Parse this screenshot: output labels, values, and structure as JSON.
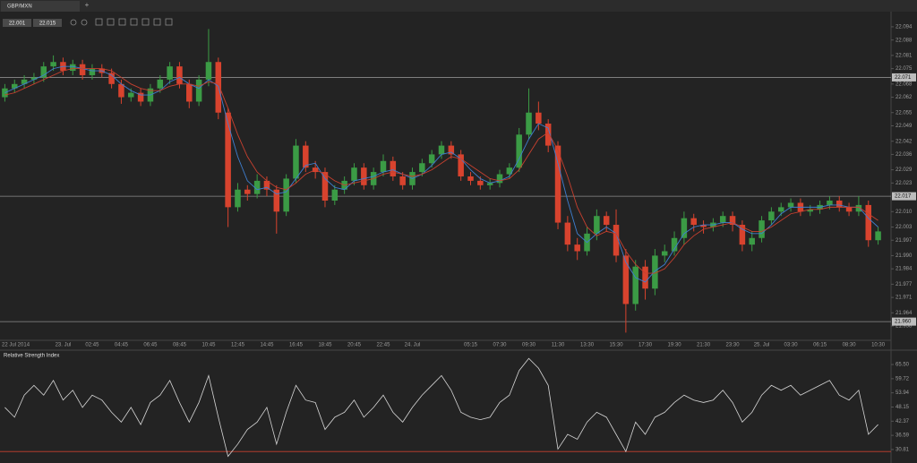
{
  "tab": {
    "title": "GBP/MXN",
    "add": "+"
  },
  "toolbar": {
    "bid": "22.001",
    "ask": "22.015"
  },
  "chart_data": [
    {
      "type": "candlestick",
      "categories": [
        "22 Jul 2014",
        null,
        null,
        null,
        null,
        null,
        "23. Jul",
        null,
        null,
        "02:45",
        null,
        null,
        "04:45",
        null,
        null,
        "06:45",
        null,
        null,
        "08:45",
        null,
        null,
        "10:45",
        null,
        null,
        "12:45",
        null,
        null,
        "14:45",
        null,
        null,
        "16:45",
        null,
        null,
        "18:45",
        null,
        null,
        "20:45",
        null,
        null,
        "22:45",
        null,
        null,
        "24. Jul",
        null,
        null,
        null,
        null,
        null,
        "05:15",
        null,
        null,
        "07:30",
        null,
        null,
        "09:30",
        null,
        null,
        "11:30",
        null,
        null,
        "13:30",
        null,
        null,
        "15:30",
        null,
        null,
        "17:30",
        null,
        null,
        "19:30",
        null,
        null,
        "21:30",
        null,
        null,
        "23:30",
        null,
        null,
        "25. Jul",
        null,
        null,
        "03:30",
        null,
        null,
        "06:15",
        null,
        null,
        "08:30",
        null,
        null,
        "10:30"
      ],
      "open": [
        22.062,
        22.066,
        22.068,
        22.07,
        22.071,
        22.076,
        22.078,
        22.074,
        22.077,
        22.072,
        22.075,
        22.073,
        22.068,
        22.062,
        22.064,
        22.06,
        22.066,
        22.07,
        22.076,
        22.068,
        22.06,
        22.07,
        22.078,
        22.055,
        22.012,
        22.02,
        22.018,
        22.024,
        22.02,
        22.01,
        22.025,
        22.04,
        22.03,
        22.028,
        22.015,
        22.02,
        22.024,
        22.03,
        22.022,
        22.028,
        22.033,
        22.026,
        22.022,
        22.028,
        22.032,
        22.036,
        22.04,
        22.036,
        22.026,
        22.024,
        22.022,
        22.023,
        22.027,
        22.03,
        22.045,
        22.055,
        22.05,
        22.04,
        22.005,
        21.995,
        21.992,
        22.0,
        22.008,
        22.004,
        21.99,
        21.968,
        21.985,
        21.975,
        21.99,
        21.992,
        21.998,
        22.007,
        22.004,
        22.003,
        22.005,
        22.008,
        22.004,
        21.995,
        21.998,
        22.006,
        22.01,
        22.012,
        22.014,
        22.01,
        22.011,
        22.013,
        22.015,
        22.012,
        22.01,
        22.013,
        21.997
      ],
      "high": [
        22.068,
        22.07,
        22.072,
        22.073,
        22.078,
        22.081,
        22.08,
        22.079,
        22.079,
        22.077,
        22.077,
        22.075,
        22.07,
        22.066,
        22.066,
        22.068,
        22.072,
        22.078,
        22.078,
        22.07,
        22.072,
        22.093,
        22.08,
        22.057,
        22.023,
        22.022,
        22.027,
        22.026,
        22.022,
        22.027,
        22.043,
        22.042,
        22.033,
        22.03,
        22.022,
        22.026,
        22.032,
        22.032,
        22.03,
        22.036,
        22.035,
        22.028,
        22.03,
        22.034,
        22.038,
        22.042,
        22.042,
        22.038,
        22.028,
        22.026,
        22.025,
        22.029,
        22.032,
        22.048,
        22.066,
        22.06,
        22.052,
        22.042,
        22.008,
        21.998,
        22.003,
        22.011,
        22.01,
        22.011,
        21.993,
        21.988,
        21.988,
        21.993,
        21.995,
        22.001,
        22.01,
        22.009,
        22.006,
        22.007,
        22.01,
        22.01,
        22.006,
        22.001,
        22.008,
        22.012,
        22.014,
        22.016,
        22.016,
        22.013,
        22.015,
        22.017,
        22.017,
        22.014,
        22.017,
        22.015,
        22.003
      ],
      "low": [
        22.06,
        22.064,
        22.066,
        22.068,
        22.069,
        22.074,
        22.072,
        22.072,
        22.07,
        22.07,
        22.071,
        22.066,
        22.059,
        22.06,
        22.058,
        22.058,
        22.064,
        22.068,
        22.066,
        22.057,
        22.058,
        22.067,
        22.052,
        22.003,
        22.01,
        22.015,
        22.016,
        22.017,
        22.0,
        22.008,
        22.023,
        22.028,
        22.025,
        22.012,
        22.013,
        22.018,
        22.022,
        22.02,
        22.02,
        22.026,
        22.024,
        22.02,
        22.02,
        22.026,
        22.03,
        22.034,
        22.034,
        22.024,
        22.022,
        22.02,
        22.02,
        22.021,
        22.025,
        22.028,
        22.043,
        22.047,
        22.037,
        22.002,
        21.992,
        21.988,
        21.99,
        21.997,
        22.001,
        21.987,
        21.955,
        21.965,
        21.97,
        21.972,
        21.987,
        21.99,
        21.995,
        22.001,
        22.0,
        22.001,
        22.003,
        22.001,
        21.992,
        21.992,
        21.996,
        22.004,
        22.008,
        22.01,
        22.008,
        22.008,
        22.009,
        22.011,
        22.01,
        22.008,
        22.008,
        21.994,
        21.995
      ],
      "close": [
        22.066,
        22.068,
        22.07,
        22.071,
        22.076,
        22.078,
        22.074,
        22.077,
        22.072,
        22.075,
        22.073,
        22.068,
        22.062,
        22.064,
        22.06,
        22.066,
        22.07,
        22.076,
        22.068,
        22.06,
        22.07,
        22.078,
        22.055,
        22.012,
        22.02,
        22.018,
        22.024,
        22.02,
        22.01,
        22.025,
        22.04,
        22.03,
        22.028,
        22.015,
        22.02,
        22.024,
        22.03,
        22.022,
        22.028,
        22.033,
        22.026,
        22.022,
        22.028,
        22.032,
        22.036,
        22.04,
        22.036,
        22.026,
        22.024,
        22.022,
        22.023,
        22.027,
        22.03,
        22.045,
        22.055,
        22.05,
        22.04,
        22.005,
        21.995,
        21.992,
        22.0,
        22.008,
        22.004,
        21.99,
        21.968,
        21.985,
        21.975,
        21.99,
        21.992,
        21.998,
        22.007,
        22.004,
        22.003,
        22.005,
        22.008,
        22.004,
        21.995,
        21.998,
        22.006,
        22.01,
        22.012,
        22.014,
        22.01,
        22.011,
        22.013,
        22.015,
        22.012,
        22.01,
        22.013,
        21.997,
        22.001
      ],
      "up_color": "#3b9b45",
      "down_color": "#d8432e",
      "ma": [
        {
          "color": "#3f7fd0",
          "values": [
            22.064,
            22.066,
            22.068,
            22.07,
            22.072,
            22.075,
            22.076,
            22.076,
            22.075,
            22.074,
            22.074,
            22.072,
            22.068,
            22.065,
            22.063,
            22.063,
            22.065,
            22.069,
            22.071,
            22.068,
            22.066,
            22.07,
            22.067,
            22.05,
            22.035,
            22.024,
            22.02,
            22.021,
            22.018,
            22.019,
            22.025,
            22.031,
            22.032,
            22.025,
            22.021,
            22.02,
            22.024,
            22.025,
            22.026,
            22.028,
            22.029,
            22.027,
            22.025,
            22.027,
            22.031,
            22.036,
            22.037,
            22.034,
            22.029,
            22.025,
            22.023,
            22.024,
            22.026,
            22.034,
            22.043,
            22.05,
            22.048,
            22.032,
            22.015,
            22.0,
            21.996,
            22.0,
            22.003,
            22.0,
            21.987,
            21.98,
            21.978,
            21.983,
            21.986,
            21.993,
            22.0,
            22.003,
            22.004,
            22.004,
            22.005,
            22.005,
            22.002,
            22.0,
            22.0,
            22.004,
            22.009,
            22.012,
            22.012,
            22.012,
            22.012,
            22.013,
            22.013,
            22.012,
            22.012,
            22.007,
            22.003
          ]
        },
        {
          "color": "#c7402f",
          "values": [
            22.063,
            22.064,
            22.066,
            22.068,
            22.07,
            22.072,
            22.074,
            22.075,
            22.075,
            22.075,
            22.075,
            22.074,
            22.071,
            22.068,
            22.066,
            22.065,
            22.065,
            22.067,
            22.068,
            22.068,
            22.067,
            22.069,
            22.068,
            22.057,
            22.045,
            22.035,
            22.028,
            22.024,
            22.021,
            22.02,
            22.023,
            22.027,
            22.029,
            22.027,
            22.024,
            22.022,
            22.023,
            22.024,
            22.025,
            22.027,
            22.028,
            22.027,
            22.026,
            22.027,
            22.029,
            22.032,
            22.035,
            22.034,
            22.031,
            22.028,
            22.025,
            22.024,
            22.025,
            22.029,
            22.036,
            22.043,
            22.046,
            22.038,
            22.026,
            22.012,
            22.003,
            21.999,
            22.001,
            22.0,
            21.992,
            21.986,
            21.982,
            21.982,
            21.984,
            21.989,
            21.995,
            21.999,
            22.002,
            22.003,
            22.004,
            22.005,
            22.003,
            22.001,
            22.001,
            22.003,
            22.006,
            22.009,
            22.01,
            22.011,
            22.011,
            22.012,
            22.012,
            22.012,
            22.012,
            22.009,
            22.006
          ]
        }
      ],
      "levels": [
        22.071,
        22.017,
        {
          "value": 21.96,
          "label": "21.960"
        }
      ],
      "ylim": [
        21.9515,
        22.1013
      ],
      "yticks": [
        22.094,
        22.088,
        22.081,
        22.075,
        22.068,
        22.062,
        22.055,
        22.049,
        22.042,
        22.036,
        22.029,
        22.023,
        {
          "value": 22.01,
          "label": "22.010"
        },
        22.003,
        21.997,
        {
          "value": 21.99,
          "label": "21.990"
        },
        21.984,
        21.977,
        21.971,
        21.964,
        21.958
      ]
    },
    {
      "type": "line",
      "title": "Relative Strength Index",
      "color": "#d6d6d6",
      "values": [
        48,
        44,
        53,
        57,
        53,
        59,
        51,
        55,
        48,
        53,
        51,
        46,
        42,
        48,
        41,
        50,
        53,
        59,
        50,
        42,
        50,
        61,
        44,
        28,
        33,
        39,
        42,
        48,
        33,
        46,
        57,
        51,
        50,
        39,
        44,
        46,
        51,
        44,
        48,
        53,
        46,
        42,
        48,
        53,
        57,
        61,
        55,
        46,
        44,
        43,
        44,
        50,
        53,
        63,
        68,
        64,
        57,
        31,
        37,
        35,
        42,
        46,
        44,
        37,
        30,
        42,
        37,
        44,
        46,
        50,
        53,
        51,
        50,
        51,
        55,
        50,
        42,
        46,
        53,
        57,
        55,
        57,
        53,
        55,
        57,
        59,
        53,
        51,
        55,
        37,
        41
      ],
      "level": 30,
      "level_color": "#c7402f",
      "ylim": [
        25.3,
        71.0
      ],
      "yticks": [
        {
          "value": 65.5,
          "label": "65.50"
        },
        59.72,
        53.94,
        48.15,
        42.37,
        36.59,
        30.81
      ]
    }
  ]
}
